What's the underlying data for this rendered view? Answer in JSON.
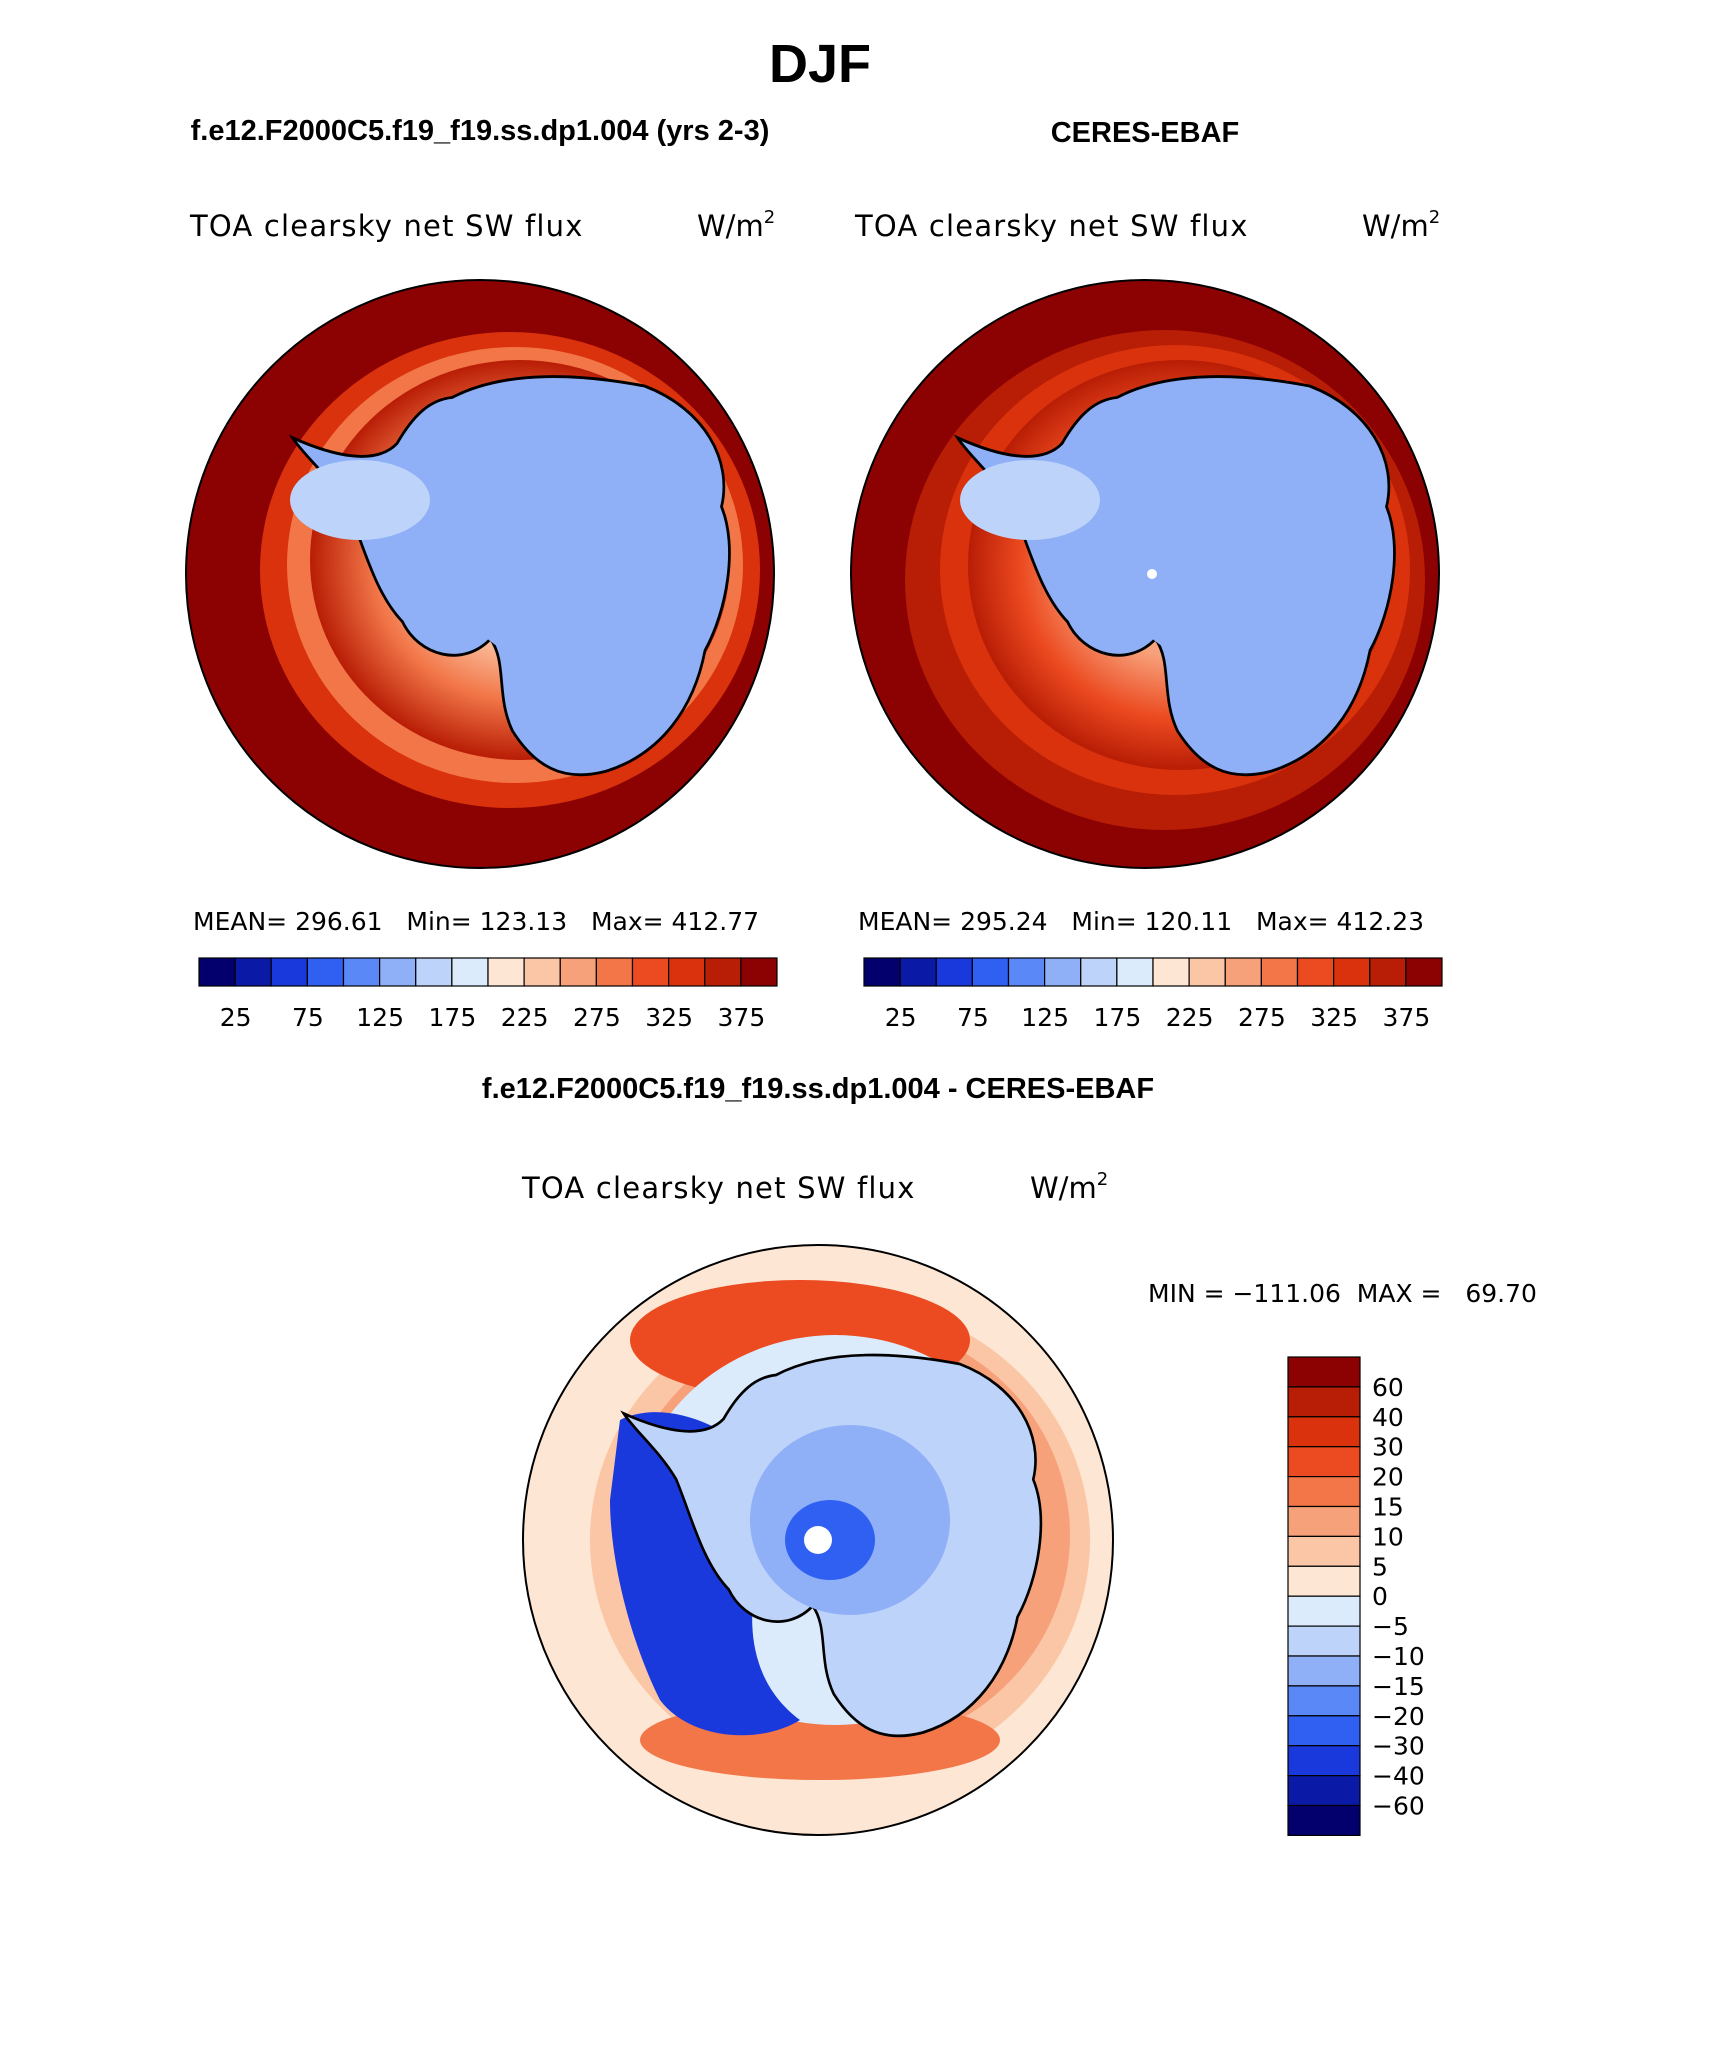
{
  "title": "DJF",
  "panels": {
    "model": {
      "heading": "f.e12.F2000C5.f19_f19.ss.dp1.004 (yrs 2-3)",
      "variable": "TOA clearsky net SW flux",
      "units_base": "W/m",
      "units_exp": "2",
      "stats": "MEAN= 296.61   Min= 123.13   Max= 412.77"
    },
    "obs": {
      "heading": "CERES-EBAF",
      "variable": "TOA clearsky net SW flux",
      "units_base": "W/m",
      "units_exp": "2",
      "stats": "MEAN= 295.24   Min= 120.11   Max= 412.23"
    },
    "diff": {
      "heading": "f.e12.F2000C5.f19_f19.ss.dp1.004 - CERES-EBAF",
      "variable": "TOA clearsky net SW flux",
      "units_base": "W/m",
      "units_exp": "2",
      "stats": "MIN = −111.06  MAX =   69.70"
    }
  },
  "chart_data": [
    {
      "type": "heatmap",
      "name": "model",
      "projection": "south polar stereographic",
      "title": "TOA clearsky net SW flux",
      "units": "W/m2",
      "mean": 296.61,
      "min": 123.13,
      "max": 412.77,
      "colorbar_labels": [
        "25",
        "75",
        "125",
        "175",
        "225",
        "275",
        "325",
        "375"
      ],
      "colorbar_colors": [
        "#03006e",
        "#0a1aa6",
        "#1a39dc",
        "#3060f2",
        "#5a88f6",
        "#8fb0f7",
        "#bdd3fa",
        "#dcebfc",
        "#fde6d4",
        "#fbc6a5",
        "#f7a17b",
        "#f27648",
        "#ec4a20",
        "#d9320c",
        "#b81d05",
        "#8c0202"
      ],
      "regions": [
        "ocean",
        "sea-ice-margin",
        "antarctica"
      ],
      "region_colors": {
        "ocean": "#8c0202",
        "sea-ice-margin": "#f27648",
        "antarctica": "#8fb0f7"
      }
    },
    {
      "type": "heatmap",
      "name": "obs",
      "projection": "south polar stereographic",
      "title": "TOA clearsky net SW flux",
      "units": "W/m2",
      "mean": 295.24,
      "min": 120.11,
      "max": 412.23,
      "colorbar_labels": [
        "25",
        "75",
        "125",
        "175",
        "225",
        "275",
        "325",
        "375"
      ],
      "colorbar_colors": [
        "#03006e",
        "#0a1aa6",
        "#1a39dc",
        "#3060f2",
        "#5a88f6",
        "#8fb0f7",
        "#bdd3fa",
        "#dcebfc",
        "#fde6d4",
        "#fbc6a5",
        "#f7a17b",
        "#f27648",
        "#ec4a20",
        "#d9320c",
        "#b81d05",
        "#8c0202"
      ],
      "regions": [
        "ocean",
        "sea-ice-margin",
        "antarctica"
      ],
      "region_colors": {
        "ocean": "#8c0202",
        "sea-ice-margin": "#ec4a20",
        "antarctica": "#8fb0f7"
      }
    },
    {
      "type": "heatmap",
      "name": "difference",
      "projection": "south polar stereographic",
      "title": "TOA clearsky net SW flux",
      "units": "W/m2",
      "min": -111.06,
      "max": 69.7,
      "colorbar_labels": [
        "60",
        "40",
        "30",
        "20",
        "15",
        "10",
        "5",
        "0",
        "−5",
        "−10",
        "−15",
        "−20",
        "−30",
        "−40",
        "−60"
      ],
      "colorbar_colors": [
        "#8c0202",
        "#b81d05",
        "#d9320c",
        "#ec4a20",
        "#f27648",
        "#f7a17b",
        "#fbc6a5",
        "#fde6d4",
        "#dcebfc",
        "#bdd3fa",
        "#8fb0f7",
        "#5a88f6",
        "#3060f2",
        "#1a39dc",
        "#0a1aa6",
        "#03006e"
      ]
    }
  ]
}
